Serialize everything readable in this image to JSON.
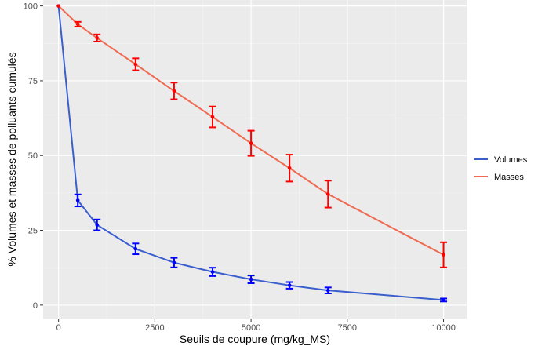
{
  "chart_data": {
    "type": "line",
    "xlabel": "Seuils de coupure (mg/kg_MS)",
    "ylabel": "% Volumes et masses de polluants cumulés",
    "xlim": [
      -400,
      10600
    ],
    "ylim": [
      -4.5,
      102
    ],
    "xticks": [
      0,
      2500,
      5000,
      7500,
      10000
    ],
    "xtick_labels": [
      "0",
      "2500",
      "5000",
      "7500",
      "10000"
    ],
    "yticks": [
      0,
      25,
      50,
      75,
      100
    ],
    "ytick_labels": [
      "0",
      "25",
      "50",
      "75",
      "100"
    ],
    "grid": true,
    "legend_position": "right",
    "x": [
      0,
      500,
      1000,
      2000,
      3000,
      4000,
      5000,
      6000,
      7000,
      10000
    ],
    "series": [
      {
        "name": "Volumes",
        "line_color": "#3a5fcd",
        "point_color": "#0000ff",
        "values": [
          100,
          35,
          26.8,
          18.8,
          14.2,
          11.1,
          8.6,
          6.6,
          4.9,
          1.7
        ],
        "error": [
          0,
          2.0,
          1.8,
          1.8,
          1.6,
          1.4,
          1.3,
          1.1,
          1.0,
          0.5
        ]
      },
      {
        "name": "Masses",
        "line_color": "#ee6a50",
        "point_color": "#ff0000",
        "values": [
          100,
          93.9,
          89.3,
          80.5,
          71.6,
          62.9,
          54.1,
          45.8,
          37.1,
          16.8
        ],
        "error": [
          0,
          0.8,
          1.2,
          2.0,
          2.8,
          3.5,
          4.2,
          4.5,
          4.5,
          4.2
        ]
      }
    ]
  }
}
